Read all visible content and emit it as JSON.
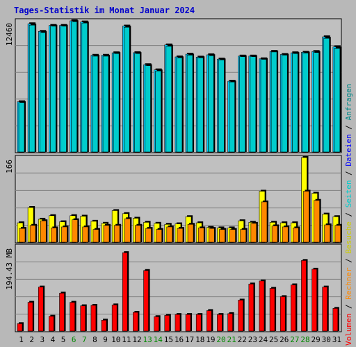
{
  "title": "Tages-Statistik im Monat Januar 2024",
  "colors": {
    "background": "#b8b8b8",
    "plot_bg": "#c0c0c0",
    "grid": "#808080",
    "anfragen": "#00ccff",
    "dateien": "#0000ff",
    "besuche": "#ffff00",
    "seiten": "#00cccc",
    "rechner": "#ff8800",
    "volumen": "#ff0000",
    "title": "#0000cc",
    "weekend_label": "#008800"
  },
  "legend": {
    "separator": " / ",
    "items": [
      {
        "label": "Volumen",
        "color": "#ff0000"
      },
      {
        "label": "Rechner",
        "color": "#ff8800"
      },
      {
        "label": "Besuche",
        "color": "#cccc00"
      },
      {
        "label": "Seiten",
        "color": "#00cccc"
      },
      {
        "label": "Dateien",
        "color": "#0000ff"
      },
      {
        "label": "Anfragen",
        "color": "#008888"
      }
    ]
  },
  "chart_data": {
    "type": "bar",
    "title": "Tages-Statistik im Monat Januar 2024",
    "categories": [
      "1",
      "2",
      "3",
      "4",
      "5",
      "6",
      "7",
      "8",
      "9",
      "10",
      "11",
      "12",
      "13",
      "14",
      "15",
      "16",
      "17",
      "18",
      "19",
      "20",
      "21",
      "22",
      "23",
      "24",
      "25",
      "26",
      "27",
      "28",
      "29",
      "30",
      "31"
    ],
    "weekend_days": [
      "6",
      "7",
      "13",
      "14",
      "20",
      "21",
      "27",
      "28"
    ],
    "panels": [
      {
        "name": "top",
        "ylabel": "12460",
        "ymax": 12460,
        "series": [
          {
            "name": "Anfragen",
            "values": [
              4770,
              12180,
              11450,
              12020,
              12020,
              12460,
              12350,
              9180,
              9180,
              9420,
              11960,
              9430,
              8290,
              7800,
              10170,
              9030,
              9290,
              9010,
              9230,
              8820,
              6720,
              9110,
              9110,
              8850,
              9550,
              9260,
              9420,
              9470,
              9540,
              10940,
              9990
            ]
          },
          {
            "name": "Dateien",
            "values": [
              4700,
              12050,
              11350,
              11950,
              11950,
              12380,
              12250,
              9100,
              9100,
              9350,
              11850,
              9350,
              8200,
              7700,
              10050,
              8950,
              9200,
              8950,
              9150,
              8750,
              6650,
              9050,
              9050,
              8800,
              9500,
              9200,
              9350,
              9400,
              9450,
              10800,
              9850
            ]
          }
        ]
      },
      {
        "name": "middle",
        "ylabel": "166",
        "ymax": 166,
        "series": [
          {
            "name": "Seiten",
            "values": [
              38,
              68,
              45,
              52,
              40,
              52,
              51,
              41,
              37,
              62,
              56,
              47,
              39,
              37,
              35,
              36,
              50,
              38,
              29,
              28,
              28,
              42,
              39,
              100,
              39,
              38,
              38,
              166,
              96,
              55,
              50
            ]
          },
          {
            "name": "Besuche",
            "values": [
              38,
              68,
              45,
              52,
              40,
              52,
              51,
              41,
              37,
              62,
              56,
              47,
              39,
              37,
              35,
              36,
              50,
              38,
              29,
              28,
              28,
              42,
              39,
              100,
              39,
              38,
              38,
              166,
              96,
              55,
              50
            ]
          },
          {
            "name": "Rechner",
            "values": [
              27,
              33,
              42,
              28,
              30,
              44,
              30,
              25,
              33,
              33,
              46,
              33,
              27,
              25,
              30,
              27,
              35,
              28,
              27,
              25,
              25,
              25,
              37,
              79,
              32,
              30,
              28,
              100,
              82,
              34,
              33
            ]
          }
        ]
      },
      {
        "name": "bottom",
        "ylabel": "194.43 MB",
        "ymax": 194.43,
        "series": [
          {
            "name": "Volumen",
            "values": [
              17,
              66,
              101,
              34,
              87,
              66,
              58,
              59,
              25,
              60,
              180,
              43,
              139,
              33,
              36,
              38,
              38,
              38,
              47,
              38,
              40,
              71,
              108,
              115,
              98,
              79,
              106,
              162,
              142,
              101,
              52
            ]
          }
        ]
      }
    ]
  }
}
